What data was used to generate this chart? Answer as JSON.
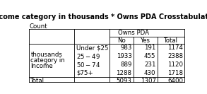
{
  "title": "Income category in thousands * Owns PDA Crosstabulation",
  "subtitle": "Count",
  "bg_color": "#f0f0f0",
  "title_fontsize": 7.0,
  "cell_fontsize": 6.2,
  "row_label_main": [
    "Income",
    "category in",
    "thousands"
  ],
  "row_labels": [
    "Under $25",
    "$25 - $49",
    "$50 - $74",
    "$75+"
  ],
  "data_no": [
    983,
    1933,
    889,
    1288
  ],
  "data_yes": [
    191,
    455,
    231,
    430
  ],
  "data_total": [
    1174,
    2388,
    1120,
    1718
  ],
  "total_no": 5093,
  "total_yes": 1307,
  "total_total": 6400
}
